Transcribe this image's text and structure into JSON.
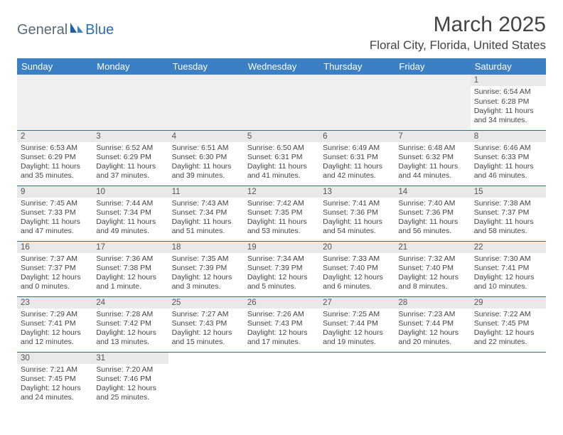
{
  "logo": {
    "part1": "General",
    "part2": "Blue"
  },
  "title": "March 2025",
  "location": "Floral City, Florida, United States",
  "colors": {
    "header_bg": "#3b7fc4",
    "header_text": "#ffffff",
    "row_divider": "#2c6fb0",
    "daynum_bg": "#e9e9e9",
    "empty_bg": "#f0f0f0",
    "text": "#444444",
    "logo_general": "#5a6a78",
    "logo_blue": "#2c6fb0"
  },
  "typography": {
    "title_fontsize": 30,
    "location_fontsize": 17,
    "header_fontsize": 13,
    "cell_fontsize": 10.5,
    "daynum_fontsize": 11.5
  },
  "day_headers": [
    "Sunday",
    "Monday",
    "Tuesday",
    "Wednesday",
    "Thursday",
    "Friday",
    "Saturday"
  ],
  "weeks": [
    [
      null,
      null,
      null,
      null,
      null,
      null,
      {
        "n": "1",
        "sunrise": "6:54 AM",
        "sunset": "6:28 PM",
        "day_h": "11",
        "day_m": "34"
      }
    ],
    [
      {
        "n": "2",
        "sunrise": "6:53 AM",
        "sunset": "6:29 PM",
        "day_h": "11",
        "day_m": "35"
      },
      {
        "n": "3",
        "sunrise": "6:52 AM",
        "sunset": "6:29 PM",
        "day_h": "11",
        "day_m": "37"
      },
      {
        "n": "4",
        "sunrise": "6:51 AM",
        "sunset": "6:30 PM",
        "day_h": "11",
        "day_m": "39"
      },
      {
        "n": "5",
        "sunrise": "6:50 AM",
        "sunset": "6:31 PM",
        "day_h": "11",
        "day_m": "41"
      },
      {
        "n": "6",
        "sunrise": "6:49 AM",
        "sunset": "6:31 PM",
        "day_h": "11",
        "day_m": "42"
      },
      {
        "n": "7",
        "sunrise": "6:48 AM",
        "sunset": "6:32 PM",
        "day_h": "11",
        "day_m": "44"
      },
      {
        "n": "8",
        "sunrise": "6:46 AM",
        "sunset": "6:33 PM",
        "day_h": "11",
        "day_m": "46"
      }
    ],
    [
      {
        "n": "9",
        "sunrise": "7:45 AM",
        "sunset": "7:33 PM",
        "day_h": "11",
        "day_m": "47"
      },
      {
        "n": "10",
        "sunrise": "7:44 AM",
        "sunset": "7:34 PM",
        "day_h": "11",
        "day_m": "49"
      },
      {
        "n": "11",
        "sunrise": "7:43 AM",
        "sunset": "7:34 PM",
        "day_h": "11",
        "day_m": "51"
      },
      {
        "n": "12",
        "sunrise": "7:42 AM",
        "sunset": "7:35 PM",
        "day_h": "11",
        "day_m": "53"
      },
      {
        "n": "13",
        "sunrise": "7:41 AM",
        "sunset": "7:36 PM",
        "day_h": "11",
        "day_m": "54"
      },
      {
        "n": "14",
        "sunrise": "7:40 AM",
        "sunset": "7:36 PM",
        "day_h": "11",
        "day_m": "56"
      },
      {
        "n": "15",
        "sunrise": "7:38 AM",
        "sunset": "7:37 PM",
        "day_h": "11",
        "day_m": "58"
      }
    ],
    [
      {
        "n": "16",
        "sunrise": "7:37 AM",
        "sunset": "7:37 PM",
        "day_h": "12",
        "day_m": "0"
      },
      {
        "n": "17",
        "sunrise": "7:36 AM",
        "sunset": "7:38 PM",
        "day_h": "12",
        "day_m": "1"
      },
      {
        "n": "18",
        "sunrise": "7:35 AM",
        "sunset": "7:39 PM",
        "day_h": "12",
        "day_m": "3"
      },
      {
        "n": "19",
        "sunrise": "7:34 AM",
        "sunset": "7:39 PM",
        "day_h": "12",
        "day_m": "5"
      },
      {
        "n": "20",
        "sunrise": "7:33 AM",
        "sunset": "7:40 PM",
        "day_h": "12",
        "day_m": "6"
      },
      {
        "n": "21",
        "sunrise": "7:32 AM",
        "sunset": "7:40 PM",
        "day_h": "12",
        "day_m": "8"
      },
      {
        "n": "22",
        "sunrise": "7:30 AM",
        "sunset": "7:41 PM",
        "day_h": "12",
        "day_m": "10"
      }
    ],
    [
      {
        "n": "23",
        "sunrise": "7:29 AM",
        "sunset": "7:41 PM",
        "day_h": "12",
        "day_m": "12"
      },
      {
        "n": "24",
        "sunrise": "7:28 AM",
        "sunset": "7:42 PM",
        "day_h": "12",
        "day_m": "13"
      },
      {
        "n": "25",
        "sunrise": "7:27 AM",
        "sunset": "7:43 PM",
        "day_h": "12",
        "day_m": "15"
      },
      {
        "n": "26",
        "sunrise": "7:26 AM",
        "sunset": "7:43 PM",
        "day_h": "12",
        "day_m": "17"
      },
      {
        "n": "27",
        "sunrise": "7:25 AM",
        "sunset": "7:44 PM",
        "day_h": "12",
        "day_m": "19"
      },
      {
        "n": "28",
        "sunrise": "7:23 AM",
        "sunset": "7:44 PM",
        "day_h": "12",
        "day_m": "20"
      },
      {
        "n": "29",
        "sunrise": "7:22 AM",
        "sunset": "7:45 PM",
        "day_h": "12",
        "day_m": "22"
      }
    ],
    [
      {
        "n": "30",
        "sunrise": "7:21 AM",
        "sunset": "7:45 PM",
        "day_h": "12",
        "day_m": "24"
      },
      {
        "n": "31",
        "sunrise": "7:20 AM",
        "sunset": "7:46 PM",
        "day_h": "12",
        "day_m": "25"
      },
      null,
      null,
      null,
      null,
      null
    ]
  ],
  "labels": {
    "sunrise": "Sunrise: ",
    "sunset": "Sunset: ",
    "daylight_prefix": "Daylight: ",
    "hours_word": " hours",
    "and_word": "and ",
    "minutes_suffix": " minutes.",
    "minute_suffix": " minute."
  }
}
